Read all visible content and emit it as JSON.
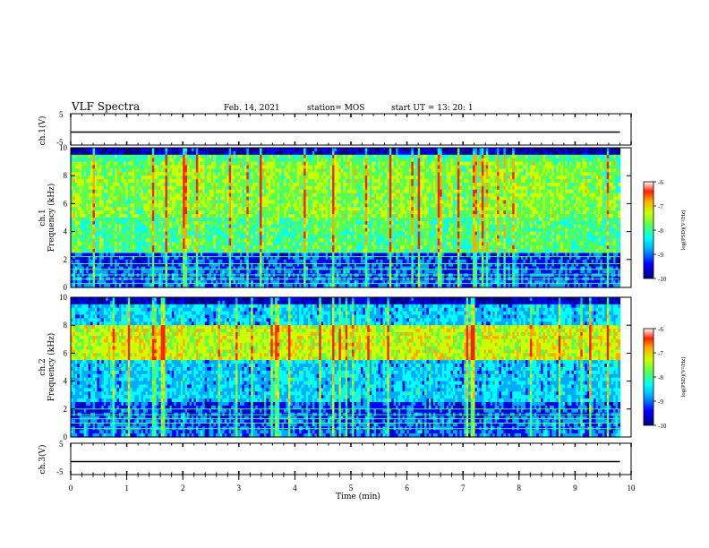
{
  "header": {
    "title": "VLF Spectra",
    "date": "Feb. 14, 2021",
    "station": "station= MOS",
    "start": "start  UT =   13: 20: 1"
  },
  "colorbar": {
    "label": "log(PSD)(V²/Hz)",
    "ticks": [
      "-6",
      "-7",
      "-8",
      "-9",
      "-10"
    ],
    "colormap": [
      "#000080",
      "#0000ff",
      "#00aaff",
      "#00ffff",
      "#55ff55",
      "#ccff00",
      "#ffaa00",
      "#ff2200",
      "#ffffff"
    ]
  },
  "chart_data": [
    {
      "name": "ch1-voltage",
      "type": "line",
      "ylabel": "ch.1(V)",
      "ylim": [
        -5,
        5
      ],
      "yticks": [
        "5",
        "-5"
      ],
      "xlim": [
        0,
        10
      ],
      "x": [
        0,
        9.8
      ],
      "y": [
        0,
        0
      ]
    },
    {
      "name": "ch1-spectrogram",
      "type": "heatmap",
      "ylabel": "ch.1 Frequency (kHz)",
      "xlim": [
        0,
        10
      ],
      "ylim": [
        0,
        10
      ],
      "yticks": [
        "0",
        "2",
        "4",
        "6",
        "8",
        "10"
      ],
      "data_end_min": 9.8,
      "peak_band_khz": [
        5,
        9
      ],
      "line_freqs_khz": [
        0.3,
        0.6,
        0.9,
        1.3,
        1.7,
        2.2,
        2.5
      ]
    },
    {
      "name": "ch2-spectrogram",
      "type": "heatmap",
      "ylabel": "ch.2 Frequency (kHz)",
      "xlim": [
        0,
        10
      ],
      "ylim": [
        0,
        10
      ],
      "yticks": [
        "0",
        "2",
        "4",
        "6",
        "8",
        "10"
      ],
      "data_end_min": 9.8,
      "peak_band_khz": [
        5.5,
        8
      ],
      "line_freqs_khz": [
        0.6,
        1.0,
        1.3,
        1.6,
        2.0
      ]
    },
    {
      "name": "ch3-voltage",
      "type": "line",
      "ylabel": "ch.3(V)",
      "ylim": [
        -5,
        5
      ],
      "yticks": [
        "5",
        "-5"
      ],
      "xlim": [
        0,
        10
      ],
      "x": [
        0,
        9.8
      ],
      "y": [
        0,
        0
      ]
    }
  ],
  "xaxis": {
    "label": "Time  (min)",
    "ticks": [
      "0",
      "1",
      "2",
      "3",
      "4",
      "5",
      "6",
      "7",
      "8",
      "9",
      "10"
    ]
  }
}
